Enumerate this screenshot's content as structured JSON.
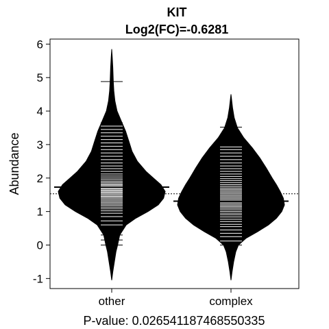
{
  "chart_data": {
    "type": "beanplot",
    "title": "KIT",
    "subtitle": "Log2(FC)=-0.6281",
    "xlabel": "P-value: 0.026541187468550335",
    "ylabel": "Abundance",
    "ylim": [
      -1.3,
      6.15
    ],
    "yticks": [
      -1,
      0,
      1,
      2,
      3,
      4,
      5,
      6
    ],
    "categories": [
      "other",
      "complex"
    ],
    "overall_mean": 1.53,
    "groups": [
      {
        "name": "other",
        "mean": 1.73,
        "min": -1.05,
        "max": 5.85,
        "density": [
          [
            -1.05,
            0.0
          ],
          [
            -0.8,
            0.02
          ],
          [
            -0.5,
            0.05
          ],
          [
            -0.2,
            0.08
          ],
          [
            0.0,
            0.11
          ],
          [
            0.3,
            0.15
          ],
          [
            0.6,
            0.27
          ],
          [
            0.8,
            0.45
          ],
          [
            1.0,
            0.68
          ],
          [
            1.2,
            0.87
          ],
          [
            1.4,
            0.97
          ],
          [
            1.6,
            1.0
          ],
          [
            1.8,
            0.92
          ],
          [
            2.0,
            0.78
          ],
          [
            2.2,
            0.64
          ],
          [
            2.5,
            0.48
          ],
          [
            2.8,
            0.38
          ],
          [
            3.1,
            0.32
          ],
          [
            3.4,
            0.26
          ],
          [
            3.7,
            0.18
          ],
          [
            4.0,
            0.1
          ],
          [
            4.3,
            0.06
          ],
          [
            4.6,
            0.04
          ],
          [
            4.9,
            0.03
          ],
          [
            5.3,
            0.02
          ],
          [
            5.6,
            0.01
          ],
          [
            5.85,
            0.0
          ]
        ],
        "observations": [
          0.0,
          0.15,
          0.3,
          0.45,
          0.6,
          0.72,
          0.85,
          0.95,
          1.02,
          1.08,
          1.13,
          1.18,
          1.22,
          1.26,
          1.3,
          1.34,
          1.38,
          1.42,
          1.45,
          1.48,
          1.52,
          1.55,
          1.58,
          1.61,
          1.64,
          1.67,
          1.7,
          1.73,
          1.76,
          1.79,
          1.82,
          1.86,
          1.9,
          1.95,
          2.0,
          2.06,
          2.12,
          2.2,
          2.28,
          2.36,
          2.45,
          2.55,
          2.65,
          2.75,
          2.85,
          2.95,
          3.05,
          3.15,
          3.25,
          3.35,
          3.45,
          3.55,
          3.65,
          4.88
        ]
      },
      {
        "name": "complex",
        "mean": 1.31,
        "min": -1.05,
        "max": 4.5,
        "density": [
          [
            -1.05,
            0.0
          ],
          [
            -0.8,
            0.02
          ],
          [
            -0.5,
            0.05
          ],
          [
            -0.2,
            0.09
          ],
          [
            0.0,
            0.14
          ],
          [
            0.2,
            0.28
          ],
          [
            0.4,
            0.5
          ],
          [
            0.6,
            0.7
          ],
          [
            0.8,
            0.85
          ],
          [
            1.0,
            0.95
          ],
          [
            1.2,
            1.0
          ],
          [
            1.4,
            0.98
          ],
          [
            1.6,
            0.92
          ],
          [
            1.8,
            0.85
          ],
          [
            2.0,
            0.77
          ],
          [
            2.3,
            0.66
          ],
          [
            2.6,
            0.54
          ],
          [
            2.9,
            0.4
          ],
          [
            3.2,
            0.24
          ],
          [
            3.5,
            0.12
          ],
          [
            3.8,
            0.06
          ],
          [
            4.1,
            0.03
          ],
          [
            4.5,
            0.0
          ]
        ],
        "observations": [
          0.0,
          0.12,
          0.25,
          0.35,
          0.45,
          0.55,
          0.62,
          0.7,
          0.77,
          0.84,
          0.9,
          0.95,
          1.0,
          1.05,
          1.1,
          1.14,
          1.18,
          1.22,
          1.26,
          1.3,
          1.34,
          1.38,
          1.42,
          1.46,
          1.5,
          1.54,
          1.58,
          1.62,
          1.66,
          1.7,
          1.75,
          1.8,
          1.86,
          1.92,
          1.98,
          2.05,
          2.12,
          2.2,
          2.28,
          2.36,
          2.45,
          2.55,
          2.65,
          2.75,
          2.85,
          2.93,
          3.52
        ]
      }
    ]
  }
}
